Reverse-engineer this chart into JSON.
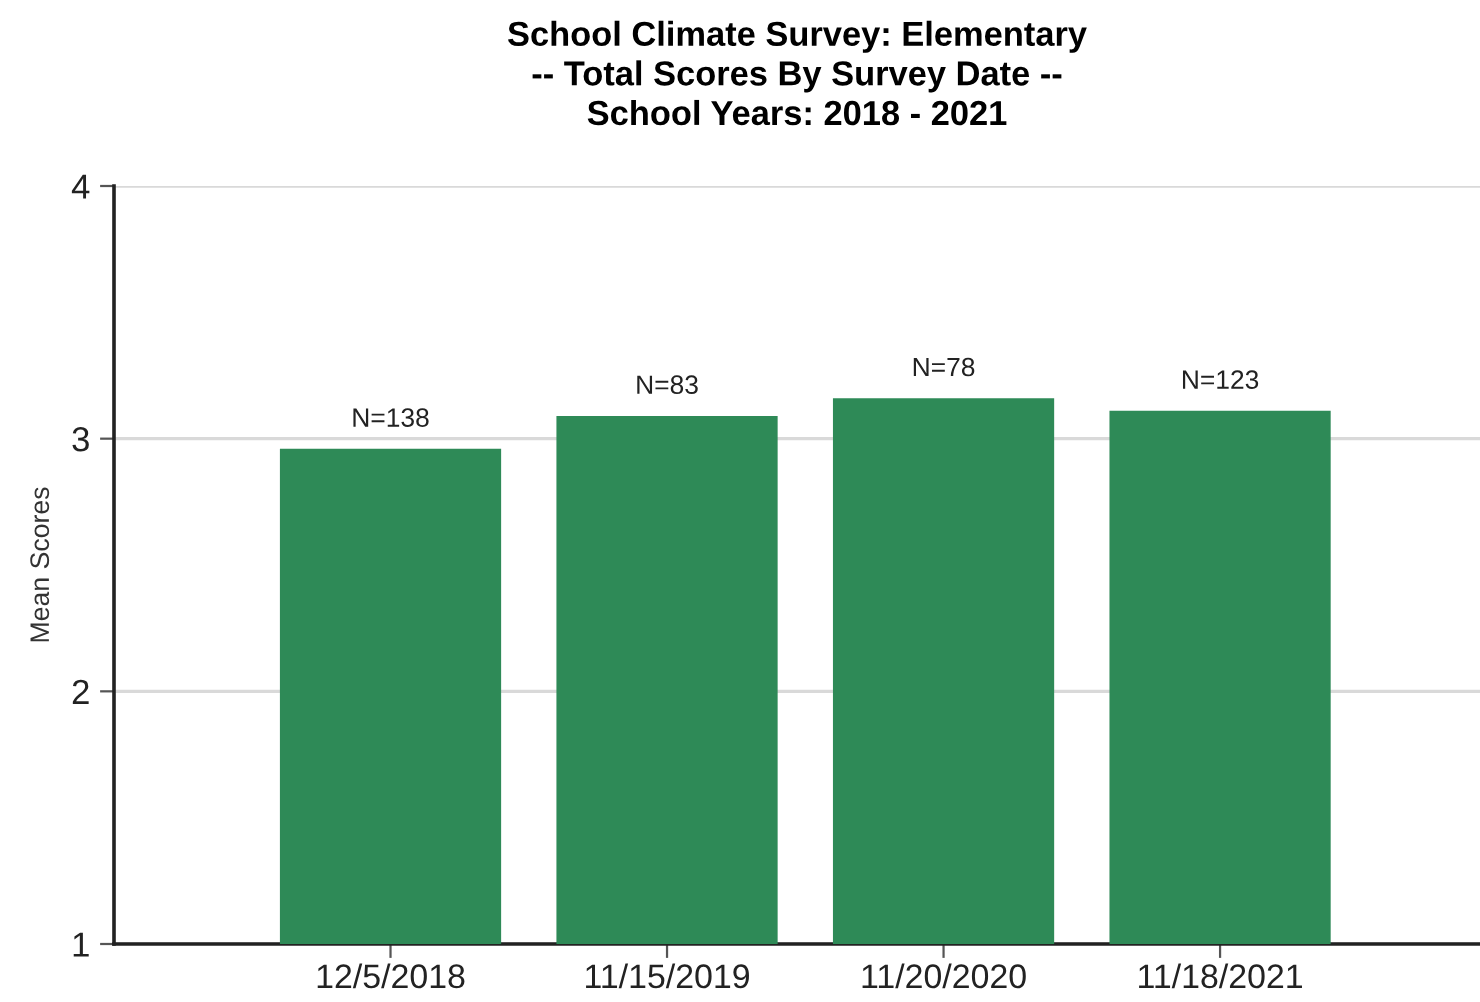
{
  "chart_data": {
    "type": "bar",
    "title": "School Climate Survey: Elementary\n-- Total Scores By Survey Date --\nSchool Years: 2018 - 2021",
    "ylabel": "Mean Scores",
    "categories": [
      "12/5/2018",
      "11/15/2019",
      "11/20/2020",
      "11/18/2021"
    ],
    "values": [
      2.96,
      3.09,
      3.16,
      3.11
    ],
    "annotations": [
      {
        "text": "N=138",
        "x": "12/5/2018",
        "y": 2.96
      },
      {
        "text": "N=83",
        "x": "11/15/2019",
        "y": 3.09
      },
      {
        "text": "N=78",
        "x": "11/20/2020",
        "y": 3.16
      },
      {
        "text": "N=123",
        "x": "11/18/2021",
        "y": 3.11
      }
    ],
    "color": "#2e8a57",
    "ylim": [
      1,
      4
    ],
    "yticks": [
      1,
      2,
      3,
      4
    ],
    "grid": "y",
    "legend": false
  }
}
